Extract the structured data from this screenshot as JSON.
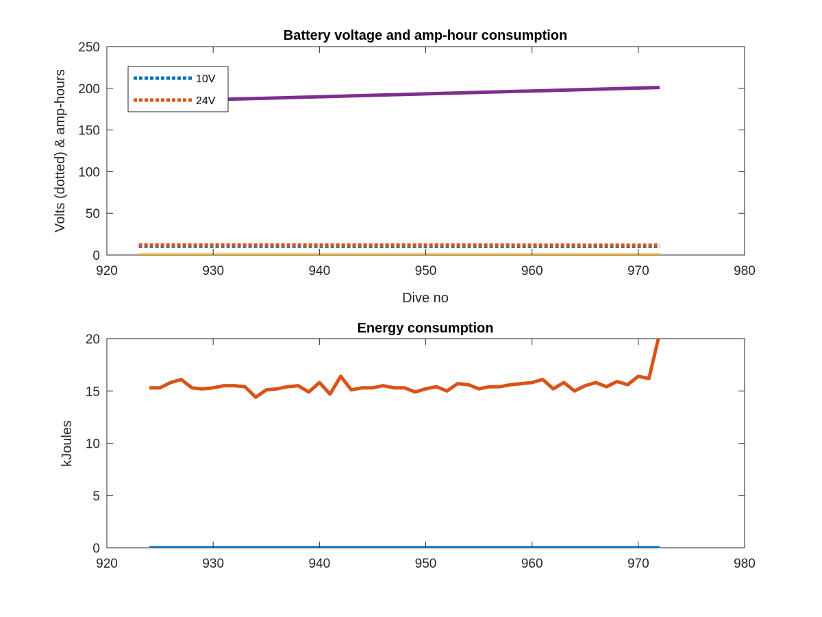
{
  "chart_data": [
    {
      "type": "line",
      "title": "Battery voltage and amp-hour consumption",
      "xlabel": "Dive no",
      "ylabel": "Volts (dotted) & amp-hours",
      "xlim": [
        920,
        980
      ],
      "ylim": [
        0,
        250
      ],
      "xticks": [
        "920",
        "930",
        "940",
        "950",
        "960",
        "970",
        "980"
      ],
      "yticks": [
        "0",
        "50",
        "100",
        "150",
        "200",
        "250"
      ],
      "grid": false,
      "legend": "top-left",
      "series": [
        {
          "name": "10V",
          "style": "dotted",
          "color": "#0072BD",
          "x": [
            923,
            935,
            945,
            955,
            965,
            972
          ],
          "y": [
            10.5,
            10.5,
            10.4,
            10.4,
            10.4,
            10.4
          ]
        },
        {
          "name": "24V",
          "style": "dotted",
          "color": "#D95319",
          "x": [
            923,
            935,
            945,
            955,
            965,
            972
          ],
          "y": [
            12,
            12,
            11.9,
            11.9,
            11.8,
            11.8
          ]
        },
        {
          "name": "",
          "style": "solid",
          "color": "#EDB120",
          "x": [
            923,
            972
          ],
          "y": [
            0,
            0
          ]
        },
        {
          "name": "",
          "style": "solid",
          "color": "#7E2F8E",
          "x": [
            923,
            972
          ],
          "y": [
            184,
            201
          ]
        }
      ]
    },
    {
      "type": "line",
      "title": "Energy consumption",
      "xlabel": "",
      "ylabel": "kJoules",
      "xlim": [
        920,
        980
      ],
      "ylim": [
        0,
        20
      ],
      "xticks": [
        "920",
        "930",
        "940",
        "950",
        "960",
        "970",
        "980"
      ],
      "yticks": [
        "0",
        "5",
        "10",
        "15",
        "20"
      ],
      "grid": false,
      "series": [
        {
          "name": "",
          "style": "solid",
          "color": "#D95319",
          "x": [
            924,
            925,
            926,
            927,
            928,
            929,
            930,
            931,
            932,
            933,
            934,
            935,
            936,
            937,
            938,
            939,
            940,
            941,
            942,
            943,
            944,
            945,
            946,
            947,
            948,
            949,
            950,
            951,
            952,
            953,
            954,
            955,
            956,
            957,
            958,
            959,
            960,
            961,
            962,
            963,
            964,
            965,
            966,
            967,
            968,
            969,
            970,
            971,
            972
          ],
          "y": [
            15.3,
            15.3,
            15.8,
            16.1,
            15.3,
            15.2,
            15.3,
            15.5,
            15.5,
            15.4,
            14.4,
            15.1,
            15.2,
            15.4,
            15.5,
            14.9,
            15.8,
            14.7,
            16.4,
            15.1,
            15.3,
            15.3,
            15.5,
            15.3,
            15.3,
            14.9,
            15.2,
            15.4,
            15.0,
            15.7,
            15.6,
            15.2,
            15.4,
            15.4,
            15.6,
            15.7,
            15.8,
            16.1,
            15.2,
            15.8,
            15.0,
            15.5,
            15.8,
            15.4,
            15.9,
            15.6,
            16.4,
            16.2,
            20.5
          ]
        },
        {
          "name": "",
          "style": "solid",
          "color": "#0072BD",
          "x": [
            924,
            972
          ],
          "y": [
            0,
            0
          ]
        }
      ]
    }
  ]
}
